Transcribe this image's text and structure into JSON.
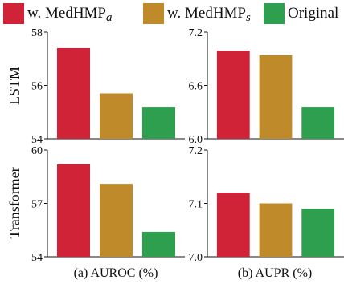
{
  "legend": [
    {
      "base": "w. MedHMP",
      "sub": "a",
      "color": "#d12338"
    },
    {
      "base": "w. MedHMP",
      "sub": "s",
      "color": "#bf8a2a"
    },
    {
      "base": "Original",
      "sub": "",
      "color": "#2e9e4f"
    }
  ],
  "row_labels": [
    "LSTM",
    "Transformer"
  ],
  "column_labels": [
    "(a) AUROC (%)",
    "(b) AUPR (%)"
  ],
  "chart_data": [
    {
      "type": "bar",
      "row": "LSTM",
      "column": "(a) AUROC (%)",
      "categories": [
        "w. MedHMPa",
        "w. MedHMPs",
        "Original"
      ],
      "values": [
        57.4,
        55.7,
        55.2
      ],
      "colors": [
        "#d12338",
        "#bf8a2a",
        "#2e9e4f"
      ],
      "ylim": [
        54,
        58
      ],
      "yticks": [
        54,
        56,
        58
      ],
      "ytick_labels": [
        "54",
        "56",
        "58"
      ]
    },
    {
      "type": "bar",
      "row": "LSTM",
      "column": "(b) AUPR (%)",
      "categories": [
        "w. MedHMPa",
        "w. MedHMPs",
        "Original"
      ],
      "values": [
        6.99,
        6.94,
        6.36
      ],
      "colors": [
        "#d12338",
        "#bf8a2a",
        "#2e9e4f"
      ],
      "ylim": [
        6.0,
        7.2
      ],
      "yticks": [
        6.0,
        6.6,
        7.2
      ],
      "ytick_labels": [
        "6.0",
        "6.6",
        "7.2"
      ]
    },
    {
      "type": "bar",
      "row": "Transformer",
      "column": "(a) AUROC (%)",
      "categories": [
        "w. MedHMPa",
        "w. MedHMPs",
        "Original"
      ],
      "values": [
        59.2,
        58.1,
        55.4
      ],
      "colors": [
        "#d12338",
        "#bf8a2a",
        "#2e9e4f"
      ],
      "ylim": [
        54,
        60
      ],
      "yticks": [
        54,
        57,
        60
      ],
      "ytick_labels": [
        "54",
        "57",
        "60"
      ]
    },
    {
      "type": "bar",
      "row": "Transformer",
      "column": "(b) AUPR (%)",
      "categories": [
        "w. MedHMPa",
        "w. MedHMPs",
        "Original"
      ],
      "values": [
        7.12,
        7.1,
        7.09
      ],
      "colors": [
        "#d12338",
        "#bf8a2a",
        "#2e9e4f"
      ],
      "ylim": [
        7.0,
        7.2
      ],
      "yticks": [
        7.0,
        7.1,
        7.2
      ],
      "ytick_labels": [
        "7.0",
        "7.1",
        "7.2"
      ]
    }
  ]
}
